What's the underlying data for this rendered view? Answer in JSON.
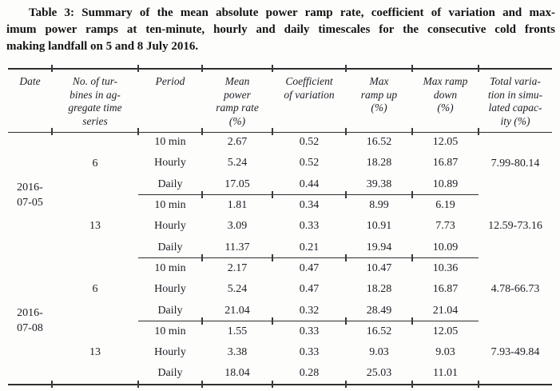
{
  "caption": {
    "line1": "Table 3: Summary of the mean absolute power ramp rate, coefficient of variation and max-",
    "line2": "imum power ramps at ten-minute, hourly and daily timescales for the consecutive cold fronts",
    "line3": "making landfall on 5 and 8 July 2016."
  },
  "table": {
    "headers": {
      "date": "Date",
      "turbines": "No. of tur-\nbines in ag-\ngregate time\nseries",
      "period": "Period",
      "mean": "Mean\npower\nramp rate\n(%)",
      "coef": "Coefficient\nof variation",
      "max_up": "Max\nramp up\n(%)",
      "max_down": "Max ramp\ndown\n(%)",
      "total": "Total varia-\ntion in simu-\nlated capac-\nity (%)"
    },
    "groups": [
      {
        "date": "2016-\n07-05",
        "subgroups": [
          {
            "turbines": "6",
            "total": "7.99-80.14",
            "rows": [
              {
                "period": "10 min",
                "mean": "2.67",
                "coef": "0.52",
                "up": "16.52",
                "down": "12.05"
              },
              {
                "period": "Hourly",
                "mean": "5.24",
                "coef": "0.52",
                "up": "18.28",
                "down": "16.87"
              },
              {
                "period": "Daily",
                "mean": "17.05",
                "coef": "0.44",
                "up": "39.38",
                "down": "10.89"
              }
            ]
          },
          {
            "turbines": "13",
            "total": "12.59-73.16",
            "rows": [
              {
                "period": "10 min",
                "mean": "1.81",
                "coef": "0.34",
                "up": "8.99",
                "down": "6.19"
              },
              {
                "period": "Hourly",
                "mean": "3.09",
                "coef": "0.33",
                "up": "10.91",
                "down": "7.73"
              },
              {
                "period": "Daily",
                "mean": "11.37",
                "coef": "0.21",
                "up": "19.94",
                "down": "10.09"
              }
            ]
          }
        ]
      },
      {
        "date": "2016-\n07-08",
        "subgroups": [
          {
            "turbines": "6",
            "total": "4.78-66.73",
            "rows": [
              {
                "period": "10 min",
                "mean": "2.17",
                "coef": "0.47",
                "up": "10.47",
                "down": "10.36"
              },
              {
                "period": "Hourly",
                "mean": "5.24",
                "coef": "0.47",
                "up": "18.28",
                "down": "16.87"
              },
              {
                "period": "Daily",
                "mean": "21.04",
                "coef": "0.32",
                "up": "28.49",
                "down": "21.04"
              }
            ]
          },
          {
            "turbines": "13",
            "total": "7.93-49.84",
            "rows": [
              {
                "period": "10 min",
                "mean": "1.55",
                "coef": "0.33",
                "up": "16.52",
                "down": "12.05"
              },
              {
                "period": "Hourly",
                "mean": "3.38",
                "coef": "0.33",
                "up": "9.03",
                "down": "9.03"
              },
              {
                "period": "Daily",
                "mean": "18.04",
                "coef": "0.28",
                "up": "25.03",
                "down": "11.01"
              }
            ]
          }
        ]
      }
    ],
    "rule_color": "#2e2e2e",
    "text_color": "#1e1e24"
  }
}
